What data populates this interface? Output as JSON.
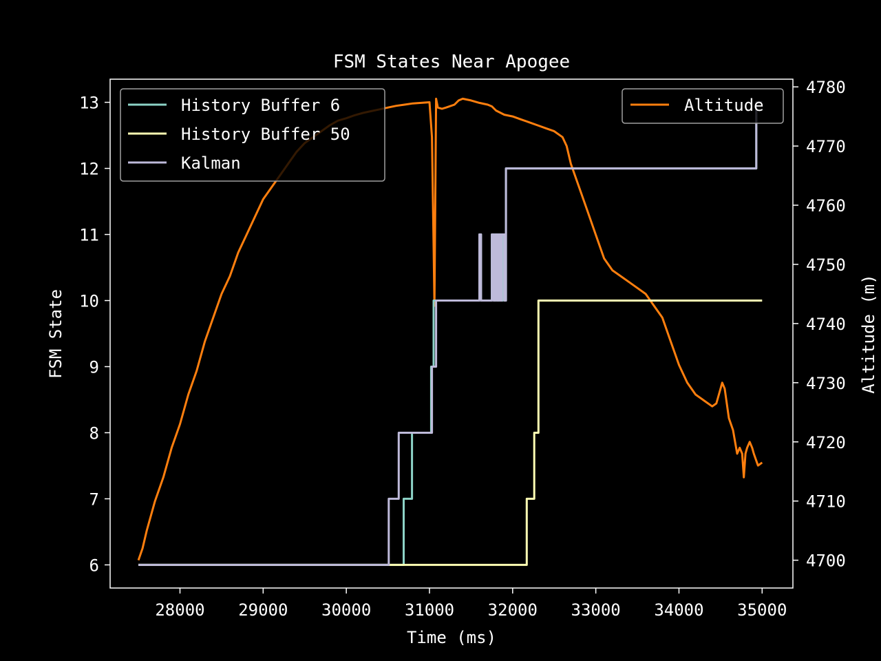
{
  "chart_data": {
    "type": "line",
    "title": "FSM States Near Apogee",
    "xlabel": "Time (ms)",
    "ylabel": "FSM State",
    "y2label": "Altitude (m)",
    "xlim": [
      27160,
      35370
    ],
    "ylim": [
      5.65,
      13.35
    ],
    "y2lim": [
      4695.3,
      4781.3
    ],
    "xticks": [
      28000,
      29000,
      30000,
      31000,
      32000,
      33000,
      34000,
      35000
    ],
    "yticks": [
      6,
      7,
      8,
      9,
      10,
      11,
      12,
      13
    ],
    "y2ticks": [
      4700,
      4710,
      4720,
      4730,
      4740,
      4750,
      4760,
      4770,
      4780
    ],
    "grid": false,
    "legend_left_position": "upper-left",
    "legend_right_position": "upper-right",
    "background": "#000000",
    "axes_color": "#ffffff",
    "series": [
      {
        "name": "History Buffer 6",
        "axis": "left",
        "color": "#8dd3c7",
        "x": [
          27500,
          30690,
          30690,
          30790,
          30790,
          31020,
          31020,
          31050,
          31050,
          31200,
          31200,
          31600,
          31600,
          31620,
          31620,
          31660,
          31660,
          31750,
          31750,
          31780,
          31780,
          31800,
          31800,
          31830,
          31830,
          31840,
          31840,
          31870,
          31870,
          31880,
          31880,
          31900,
          31900,
          31920,
          31920,
          34930,
          34930,
          35000
        ],
        "y": [
          6,
          6,
          7,
          7,
          8,
          8,
          9,
          9,
          10,
          10,
          10,
          10,
          11,
          11,
          10,
          10,
          10,
          10,
          11,
          11,
          10,
          10,
          11,
          11,
          10,
          10,
          11,
          11,
          10,
          10,
          11,
          11,
          10,
          10,
          12,
          12,
          13,
          13
        ]
      },
      {
        "name": "History Buffer 50",
        "axis": "left",
        "color": "#ffffb3",
        "x": [
          27500,
          32170,
          32170,
          32260,
          32260,
          32310,
          32310,
          35000
        ],
        "y": [
          6,
          6,
          7,
          7,
          8,
          8,
          10,
          10
        ]
      },
      {
        "name": "Kalman",
        "axis": "left",
        "color": "#bebada",
        "x": [
          27500,
          30510,
          30510,
          30630,
          30630,
          31030,
          31030,
          31080,
          31080,
          31600,
          31600,
          31620,
          31620,
          31750,
          31750,
          31770,
          31770,
          31790,
          31790,
          31810,
          31810,
          31830,
          31830,
          31850,
          31850,
          31870,
          31870,
          31900,
          31900,
          31920,
          31920,
          34930,
          34930,
          35000
        ],
        "y": [
          6,
          6,
          7,
          7,
          8,
          8,
          9,
          9,
          10,
          10,
          11,
          11,
          10,
          10,
          11,
          11,
          10,
          10,
          11,
          11,
          10,
          10,
          11,
          11,
          10,
          10,
          11,
          11,
          10,
          10,
          12,
          12,
          13,
          13
        ]
      },
      {
        "name": "Altitude",
        "axis": "right",
        "color": "#ff7f0e",
        "x": [
          27500,
          27550,
          27600,
          27700,
          27800,
          27900,
          28000,
          28100,
          28200,
          28300,
          28400,
          28500,
          28600,
          28700,
          28800,
          28900,
          29000,
          29100,
          29200,
          29300,
          29400,
          29500,
          29600,
          29700,
          29800,
          29900,
          30000,
          30100,
          30200,
          30300,
          30400,
          30500,
          30600,
          30700,
          30800,
          30900,
          31000,
          31030,
          31050,
          31060,
          31080,
          31100,
          31150,
          31200,
          31300,
          31350,
          31400,
          31500,
          31600,
          31700,
          31750,
          31800,
          31900,
          32000,
          32100,
          32200,
          32300,
          32400,
          32500,
          32600,
          32650,
          32700,
          32800,
          32900,
          33000,
          33100,
          33200,
          33300,
          33400,
          33500,
          33600,
          33700,
          33800,
          33900,
          34000,
          34100,
          34200,
          34300,
          34400,
          34450,
          34500,
          34520,
          34550,
          34600,
          34650,
          34700,
          34730,
          34760,
          34780,
          34800,
          34820,
          34850,
          34880,
          34900,
          34950,
          35000
        ],
        "y": [
          4700,
          4702,
          4705,
          4710,
          4714,
          4719,
          4723,
          4728,
          4732,
          4737,
          4741,
          4745,
          4748,
          4752,
          4755,
          4758,
          4761,
          4763,
          4765,
          4767,
          4769,
          4770.5,
          4771.5,
          4772.5,
          4773.5,
          4774.3,
          4774.7,
          4775.2,
          4775.6,
          4775.9,
          4776.2,
          4776.5,
          4776.8,
          4777,
          4777.2,
          4777.3,
          4777.4,
          4771.5,
          4753,
          4743,
          4778,
          4776.5,
          4776.3,
          4776.5,
          4777,
          4777.7,
          4778,
          4777.7,
          4777.3,
          4777,
          4776.7,
          4776,
          4775.3,
          4775,
          4774.5,
          4774,
          4773.5,
          4773,
          4772.5,
          4771.5,
          4770,
          4767,
          4763,
          4759,
          4755,
          4751,
          4749,
          4748,
          4747,
          4746,
          4745,
          4743,
          4741,
          4737,
          4733,
          4730,
          4728,
          4727,
          4726,
          4726.5,
          4729,
          4730,
          4729,
          4724,
          4722,
          4718,
          4719,
          4718,
          4714,
          4718,
          4719,
          4720,
          4719,
          4718,
          4716,
          4716.5
        ]
      }
    ]
  }
}
